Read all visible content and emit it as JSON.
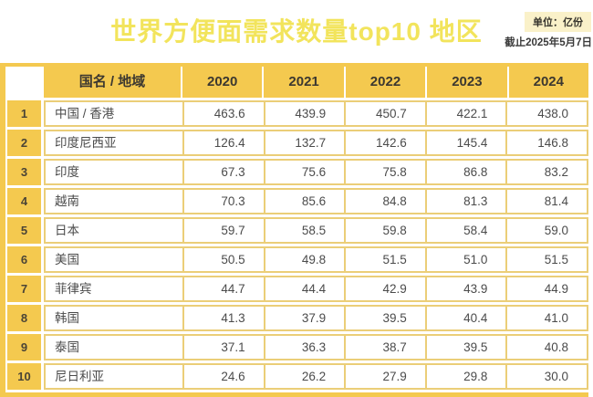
{
  "header": {
    "title": "世界方便面需求数量top10 地区",
    "unit_badge": "单位：亿份",
    "as_of": "截止2025年5月7日"
  },
  "chart_data": {
    "type": "table",
    "title": "世界方便面需求数量top10 地区",
    "unit": "亿份",
    "columns": [
      "国名 / 地域",
      "2020",
      "2021",
      "2022",
      "2023",
      "2024"
    ],
    "rows": [
      {
        "rank": 1,
        "region": "中国 / 香港",
        "values": [
          463.6,
          439.9,
          450.7,
          422.1,
          438.0
        ]
      },
      {
        "rank": 2,
        "region": "印度尼西亚",
        "values": [
          126.4,
          132.7,
          142.6,
          145.4,
          146.8
        ]
      },
      {
        "rank": 3,
        "region": "印度",
        "values": [
          67.3,
          75.6,
          75.8,
          86.8,
          83.2
        ]
      },
      {
        "rank": 4,
        "region": "越南",
        "values": [
          70.3,
          85.6,
          84.8,
          81.3,
          81.4
        ]
      },
      {
        "rank": 5,
        "region": "日本",
        "values": [
          59.7,
          58.5,
          59.8,
          58.4,
          59.0
        ]
      },
      {
        "rank": 6,
        "region": "美国",
        "values": [
          50.5,
          49.8,
          51.5,
          51.0,
          51.5
        ]
      },
      {
        "rank": 7,
        "region": "菲律宾",
        "values": [
          44.7,
          44.4,
          42.9,
          43.9,
          44.9
        ]
      },
      {
        "rank": 8,
        "region": "韩国",
        "values": [
          41.3,
          37.9,
          39.5,
          40.4,
          41.0
        ]
      },
      {
        "rank": 9,
        "region": "泰国",
        "values": [
          37.1,
          36.3,
          38.7,
          39.5,
          40.8
        ]
      },
      {
        "rank": 10,
        "region": "尼日利亚",
        "values": [
          24.6,
          26.2,
          27.9,
          29.8,
          30.0
        ]
      }
    ]
  },
  "colors": {
    "main_yellow": "#F4C94F",
    "grid_yellow": "#EBCE78",
    "title_yellow": "#F2E45C",
    "badge_bg": "#FAF1C9",
    "text_dark": "#3C3830"
  }
}
